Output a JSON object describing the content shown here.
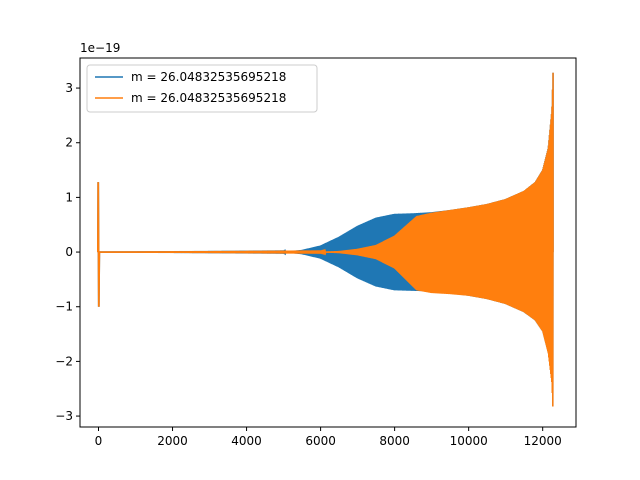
{
  "chart_data": {
    "type": "line",
    "title": "",
    "xlabel": "",
    "ylabel": "",
    "offset_label": "1e−19",
    "xlim": [
      -500,
      12900
    ],
    "ylim": [
      -3.2,
      3.55
    ],
    "x_ticks": [
      0,
      2000,
      4000,
      6000,
      8000,
      10000,
      12000
    ],
    "x_tick_labels": [
      "0",
      "2000",
      "4000",
      "6000",
      "8000",
      "10000",
      "12000"
    ],
    "y_ticks": [
      -3,
      -2,
      -1,
      0,
      1,
      2,
      3
    ],
    "y_tick_labels": [
      "−3",
      "−2",
      "−1",
      "0",
      "1",
      "2",
      "3"
    ],
    "grid": false,
    "legend_position": "top-left",
    "series": [
      {
        "name": "m = 26.04832535695218",
        "color": "#1f77b4",
        "envelope_x": [
          0,
          5000,
          5500,
          6000,
          6500,
          7000,
          7500,
          8000,
          8500,
          9000,
          9500,
          10000,
          10500,
          11000,
          11500,
          11800,
          12000,
          12150,
          12250,
          12280
        ],
        "envelope_upper": [
          0,
          0.005,
          0.04,
          0.12,
          0.28,
          0.48,
          0.63,
          0.7,
          0.71,
          0.73,
          0.77,
          0.82,
          0.88,
          0.97,
          1.12,
          1.28,
          1.5,
          1.9,
          2.6,
          3.28
        ],
        "envelope_lower": [
          0,
          -0.005,
          -0.04,
          -0.12,
          -0.28,
          -0.48,
          -0.63,
          -0.7,
          -0.71,
          -0.72,
          -0.76,
          -0.8,
          -0.86,
          -0.95,
          -1.1,
          -1.25,
          -1.45,
          -1.85,
          -2.4,
          -2.95
        ],
        "spike_x": 0,
        "spike_values": [
          1.28,
          -1.0
        ]
      },
      {
        "name": "m = 26.04832535695218",
        "color": "#ff7f0e",
        "envelope_x": [
          0,
          6000,
          6500,
          7000,
          7500,
          8000,
          8300,
          8600,
          9000,
          9500,
          10000,
          10500,
          11000,
          11500,
          11800,
          12000,
          12150,
          12250,
          12280
        ],
        "envelope_upper": [
          0,
          0.005,
          0.02,
          0.06,
          0.13,
          0.3,
          0.48,
          0.66,
          0.72,
          0.77,
          0.82,
          0.88,
          0.97,
          1.12,
          1.28,
          1.5,
          1.9,
          2.6,
          3.28
        ],
        "envelope_lower": [
          0,
          -0.005,
          -0.02,
          -0.06,
          -0.13,
          -0.3,
          -0.5,
          -0.7,
          -0.75,
          -0.77,
          -0.8,
          -0.86,
          -0.95,
          -1.1,
          -1.25,
          -1.45,
          -1.85,
          -2.4,
          -2.95
        ],
        "spike_x": 0,
        "spike_values": [
          1.28,
          -1.0
        ]
      }
    ]
  }
}
